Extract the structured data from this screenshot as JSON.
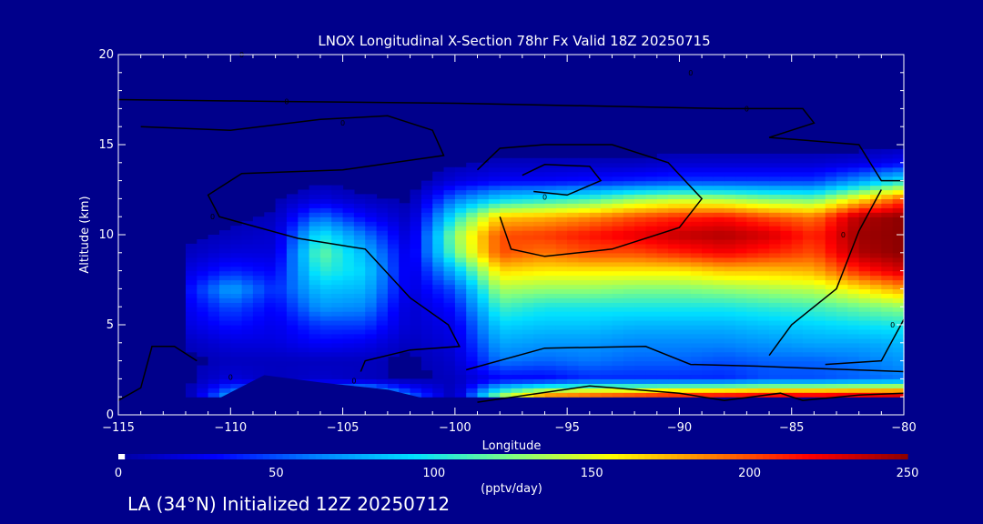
{
  "footer_text": "LA (34°N) Initialized 12Z 20250712",
  "chart_data": {
    "type": "heatmap",
    "title": "LNOX Longitudinal X-Section 78hr  Fx Valid 18Z 20250715",
    "xlabel": "Longitude",
    "ylabel": "Altitude (km)",
    "xlim": [
      -115,
      -80
    ],
    "ylim": [
      0,
      20
    ],
    "x_ticks": [
      "−115",
      "−110",
      "−105",
      "−100",
      "−95",
      "−90",
      "−85",
      "−80"
    ],
    "x_tick_values": [
      -115,
      -110,
      -105,
      -100,
      -95,
      -90,
      -85,
      -80
    ],
    "y_ticks": [
      "0",
      "5",
      "10",
      "15",
      "20"
    ],
    "y_tick_values": [
      0,
      5,
      10,
      15,
      20
    ],
    "colorbar": {
      "label": "(pptv/day)",
      "range": [
        0,
        250
      ],
      "ticks": [
        "0",
        "50",
        "100",
        "150",
        "200",
        "250"
      ],
      "tick_values": [
        0,
        50,
        100,
        150,
        200,
        250
      ],
      "colors": [
        "#0000a0",
        "#0000ff",
        "#0080ff",
        "#00e0ff",
        "#80ff80",
        "#ffff00",
        "#ff8000",
        "#ff0000",
        "#8b0000"
      ]
    },
    "lon": [
      -112,
      -110,
      -108,
      -106,
      -104,
      -102,
      -100,
      -98,
      -96,
      -94,
      -92,
      -90,
      -88,
      -86,
      -84,
      -82,
      -80
    ],
    "alt": [
      1,
      2,
      3,
      4,
      5,
      6,
      7,
      8,
      9,
      10,
      11,
      12,
      13,
      14,
      15
    ],
    "values": [
      [
        0,
        80,
        90,
        90,
        130,
        60,
        5,
        140,
        200,
        210,
        220,
        230,
        235,
        240,
        240,
        245,
        250
      ],
      [
        5,
        20,
        10,
        15,
        10,
        5,
        10,
        30,
        30,
        40,
        40,
        40,
        40,
        50,
        50,
        55,
        60
      ],
      [
        5,
        10,
        10,
        10,
        10,
        5,
        15,
        60,
        55,
        60,
        55,
        55,
        50,
        55,
        55,
        60,
        70
      ],
      [
        10,
        20,
        20,
        30,
        25,
        10,
        20,
        75,
        70,
        70,
        65,
        65,
        65,
        70,
        75,
        75,
        80
      ],
      [
        20,
        35,
        25,
        45,
        45,
        15,
        25,
        90,
        85,
        85,
        80,
        80,
        80,
        85,
        90,
        95,
        100
      ],
      [
        25,
        50,
        30,
        70,
        65,
        15,
        35,
        110,
        100,
        100,
        100,
        100,
        100,
        105,
        110,
        120,
        130
      ],
      [
        30,
        75,
        40,
        85,
        80,
        20,
        50,
        135,
        130,
        130,
        125,
        125,
        130,
        135,
        140,
        160,
        180
      ],
      [
        20,
        40,
        30,
        105,
        90,
        20,
        80,
        165,
        160,
        160,
        160,
        160,
        170,
        170,
        175,
        210,
        230
      ],
      [
        10,
        20,
        20,
        120,
        80,
        20,
        120,
        200,
        190,
        200,
        200,
        210,
        220,
        210,
        200,
        240,
        250
      ],
      [
        5,
        10,
        15,
        100,
        60,
        15,
        130,
        200,
        205,
        215,
        225,
        235,
        240,
        230,
        210,
        245,
        250
      ],
      [
        0,
        5,
        10,
        60,
        30,
        10,
        100,
        170,
        175,
        185,
        200,
        210,
        215,
        200,
        190,
        240,
        250
      ],
      [
        0,
        0,
        5,
        20,
        10,
        5,
        60,
        90,
        100,
        110,
        130,
        140,
        135,
        125,
        120,
        160,
        200
      ],
      [
        0,
        0,
        0,
        5,
        0,
        0,
        20,
        30,
        30,
        35,
        40,
        45,
        45,
        45,
        45,
        70,
        100
      ],
      [
        0,
        0,
        0,
        0,
        0,
        0,
        5,
        10,
        10,
        10,
        10,
        15,
        15,
        15,
        15,
        20,
        30
      ],
      [
        0,
        0,
        0,
        0,
        0,
        0,
        0,
        0,
        0,
        0,
        0,
        0,
        0,
        0,
        0,
        0,
        5
      ]
    ],
    "contour_labels": [
      "0",
      "0",
      "0",
      "0",
      "0",
      "0",
      "0",
      "0",
      "0",
      "0",
      "0"
    ]
  }
}
